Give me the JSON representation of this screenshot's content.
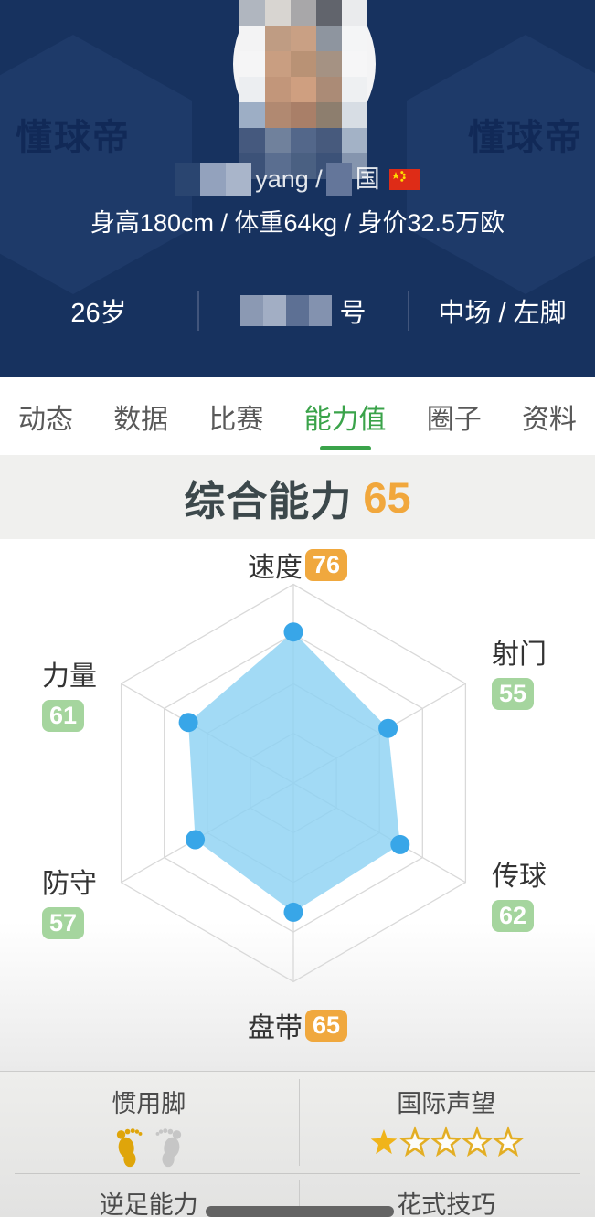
{
  "header": {
    "watermark_left": "懂球帝",
    "watermark_right": "懂球帝",
    "name_visible_fragment": "yang /",
    "name_visible_suffix": "国",
    "flag_icon": "china-flag",
    "physical_info": "身高180cm / 体重64kg / 身价32.5万欧",
    "age": "26岁",
    "club_visible_suffix": "号",
    "position_and_foot": "中场 / 左脚",
    "name_blocks": [
      "#2a4570",
      "#93a2bd",
      "#a9b5ca"
    ],
    "name_blocks2": [
      "#64769a"
    ],
    "club_blocks": [
      "#8b99b3",
      "#a2aec4",
      "#5d7094",
      "#8392af"
    ],
    "avatar_mosaic": [
      [
        "#b0b6bf",
        "#d8d5d1",
        "#a8a7a9",
        "#61646c",
        "#eaebed"
      ],
      [
        "#f3f3f4",
        "#bf9c83",
        "#c9a084",
        "#8e959f",
        "#f4f5f6"
      ],
      [
        "#f5f5f6",
        "#c99e81",
        "#b99275",
        "#a59283",
        "#f6f6f7"
      ],
      [
        "#eceef1",
        "#c2967a",
        "#cf9f80",
        "#ab8b76",
        "#eef0f2"
      ],
      [
        "#9daec5",
        "#b18971",
        "#a97f68",
        "#8d7e6e",
        "#d7dde4"
      ],
      [
        "#45597e",
        "#70819c",
        "#53678a",
        "#475a7d",
        "#a3b2c6"
      ],
      [
        "#3c5278",
        "#5a6e90",
        "#4a6082",
        "#3c5278",
        "#8595ae"
      ]
    ]
  },
  "tabs": {
    "items": [
      {
        "label": "动态",
        "name": "tab-feed",
        "active": false
      },
      {
        "label": "数据",
        "name": "tab-data",
        "active": false
      },
      {
        "label": "比赛",
        "name": "tab-matches",
        "active": false
      },
      {
        "label": "能力值",
        "name": "tab-ability",
        "active": true
      },
      {
        "label": "圈子",
        "name": "tab-circles",
        "active": false
      },
      {
        "label": "资料",
        "name": "tab-profile",
        "active": false
      }
    ],
    "active_color": "#3aa34a"
  },
  "overall": {
    "label": "综合能力",
    "value": "65",
    "value_color": "#f1a73c"
  },
  "chart_data": {
    "type": "radar",
    "title": "综合能力 65",
    "axes": [
      "速度",
      "射门",
      "传球",
      "盘带",
      "防守",
      "力量"
    ],
    "axis_names_en": [
      "speed",
      "shooting",
      "passing",
      "dribbling",
      "defense",
      "strength"
    ],
    "values": [
      76,
      55,
      62,
      65,
      57,
      61
    ],
    "max": 100,
    "grid_levels": 4,
    "grid_shape": "hexagon",
    "badge_styles": [
      "orange",
      "green",
      "green",
      "orange",
      "green",
      "green"
    ],
    "colors": {
      "fill": "#8ed2f3",
      "dot": "#38a6e8",
      "grid": "#d9d9d9",
      "orange_badge": "#f0a83e",
      "green_badge": "#a5d59e"
    }
  },
  "details": {
    "preferred_foot_label": "惯用脚",
    "preferred_foot_value": "left",
    "reputation_label": "国际声望",
    "reputation_stars_filled": 1,
    "reputation_stars_total": 5,
    "weak_foot_label": "逆足能力",
    "skill_moves_label": "花式技巧",
    "star_color": "#f0b41a",
    "star_outline_color": "#e3ae24",
    "foot_active_color": "#dfa50a",
    "foot_inactive_color": "#c6c6c6"
  }
}
